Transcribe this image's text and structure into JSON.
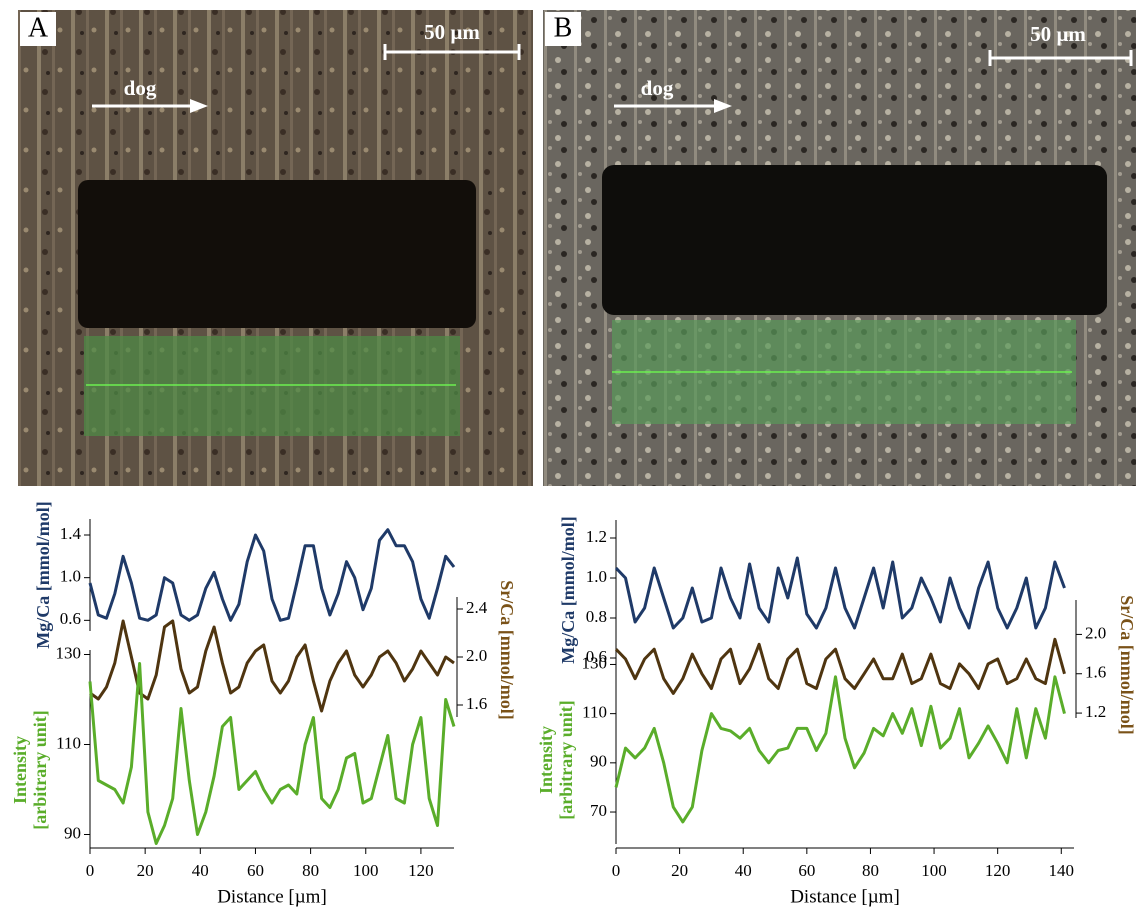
{
  "images": [
    {
      "label": "A",
      "scale_bar": "50 µm",
      "arrow_label": "dog"
    },
    {
      "label": "B",
      "scale_bar": "50 µm",
      "arrow_label": "dog"
    }
  ],
  "chart_data": [
    {
      "type": "line",
      "xlabel": "Distance [µm]",
      "xlim": [
        0,
        132
      ],
      "xticks": [
        0,
        20,
        40,
        60,
        80,
        100,
        120
      ],
      "ylabel": "Mg/Ca [mmol/mol]",
      "ylim": [
        0.5,
        1.55
      ],
      "yticks": [
        0.6,
        {
          "value": 1,
          "label": "1.0"
        },
        1.4
      ],
      "y2label": "Sr/Ca [mmol/mol]",
      "y2lim": [
        1.5,
        2.5
      ],
      "y2ticks": [
        1.6,
        {
          "value": 2,
          "label": "2.0"
        },
        2.4
      ],
      "y3label": [
        "Intensity",
        "[arbitrary unit]"
      ],
      "y3lim": [
        87,
        131
      ],
      "y3ticks": [
        90,
        110,
        130
      ],
      "x": [
        0,
        3,
        6,
        9,
        12,
        15,
        18,
        21,
        24,
        27,
        30,
        33,
        36,
        39,
        42,
        45,
        48,
        51,
        54,
        57,
        60,
        63,
        66,
        69,
        72,
        75,
        78,
        81,
        84,
        87,
        90,
        93,
        96,
        99,
        102,
        105,
        108,
        111,
        114,
        117,
        120,
        123,
        126,
        129,
        132
      ],
      "series": [
        {
          "color": "#1f3a68",
          "axis": "y",
          "values": [
            0.95,
            0.65,
            0.62,
            0.85,
            1.2,
            0.95,
            0.62,
            0.6,
            0.65,
            1.0,
            0.95,
            0.65,
            0.6,
            0.65,
            0.9,
            1.05,
            0.8,
            0.6,
            0.75,
            1.15,
            1.4,
            1.25,
            0.8,
            0.6,
            0.62,
            0.95,
            1.3,
            1.3,
            0.9,
            0.65,
            0.85,
            1.15,
            1.0,
            0.7,
            0.9,
            1.35,
            1.45,
            1.3,
            1.3,
            1.15,
            0.8,
            0.62,
            0.9,
            1.2,
            1.1
          ]
        },
        {
          "color": "#4f3510",
          "axis": "y2",
          "values": [
            1.7,
            1.65,
            1.75,
            1.95,
            2.3,
            2.0,
            1.7,
            1.65,
            1.85,
            2.25,
            2.3,
            1.9,
            1.7,
            1.75,
            2.05,
            2.25,
            1.95,
            1.7,
            1.75,
            1.95,
            2.05,
            2.1,
            1.8,
            1.7,
            1.8,
            2.0,
            2.1,
            1.8,
            1.55,
            1.8,
            1.95,
            2.05,
            1.85,
            1.75,
            1.85,
            2.0,
            2.05,
            1.95,
            1.8,
            1.9,
            2.05,
            1.95,
            1.85,
            2.0,
            1.95
          ]
        },
        {
          "color": "#5aad2a",
          "axis": "y3",
          "values": [
            124,
            102,
            101,
            100,
            97,
            105,
            128,
            95,
            88,
            92,
            98,
            118,
            102,
            90,
            95,
            103,
            114,
            116,
            100,
            102,
            104,
            100,
            97,
            100,
            101,
            99,
            110,
            116,
            98,
            96,
            100,
            107,
            108,
            97,
            98,
            105,
            112,
            98,
            97,
            110,
            116,
            98,
            92,
            120,
            114
          ]
        }
      ]
    },
    {
      "type": "line",
      "xlabel": "Distance [µm]",
      "xlim": [
        0,
        144
      ],
      "xticks": [
        0,
        20,
        40,
        60,
        80,
        100,
        120,
        140
      ],
      "ylabel": "Mg/Ca [mmol/mol]",
      "ylim": [
        0.55,
        1.29
      ],
      "yticks": [
        0.6,
        0.8,
        {
          "value": 1,
          "label": "1.0"
        },
        1.2
      ],
      "y2label": "Sr/Ca [mmol/mol]",
      "y2lim": [
        1.15,
        2.35
      ],
      "y2ticks": [
        1.2,
        1.6,
        {
          "value": 2,
          "label": "2.0"
        }
      ],
      "y3label": [
        "Intensity",
        "[arbitrary unit]"
      ],
      "y3lim": [
        57,
        131
      ],
      "y3ticks": [
        70,
        90,
        110,
        130
      ],
      "x": [
        0,
        3,
        6,
        9,
        12,
        15,
        18,
        21,
        24,
        27,
        30,
        33,
        36,
        39,
        42,
        45,
        48,
        51,
        54,
        57,
        60,
        63,
        66,
        69,
        72,
        75,
        78,
        81,
        84,
        87,
        90,
        93,
        96,
        99,
        102,
        105,
        108,
        111,
        114,
        117,
        120,
        123,
        126,
        129,
        132,
        135,
        138,
        141
      ],
      "series": [
        {
          "color": "#1f3a68",
          "axis": "y",
          "values": [
            1.05,
            1.0,
            0.78,
            0.85,
            1.05,
            0.9,
            0.75,
            0.8,
            0.95,
            0.78,
            0.8,
            1.05,
            0.9,
            0.8,
            1.07,
            0.85,
            0.78,
            1.05,
            0.9,
            1.1,
            0.82,
            0.75,
            0.85,
            1.05,
            0.85,
            0.75,
            0.9,
            1.05,
            0.85,
            1.08,
            0.8,
            0.85,
            1.0,
            0.9,
            0.78,
            1.0,
            0.85,
            0.75,
            0.95,
            1.08,
            0.85,
            0.75,
            0.85,
            1.0,
            0.75,
            0.85,
            1.08,
            0.95
          ]
        },
        {
          "color": "#4f3510",
          "axis": "y2",
          "values": [
            1.85,
            1.75,
            1.55,
            1.75,
            1.85,
            1.55,
            1.4,
            1.55,
            1.8,
            1.6,
            1.45,
            1.75,
            1.85,
            1.5,
            1.65,
            1.9,
            1.55,
            1.45,
            1.75,
            1.85,
            1.5,
            1.45,
            1.75,
            1.85,
            1.55,
            1.45,
            1.6,
            1.75,
            1.55,
            1.55,
            1.8,
            1.5,
            1.55,
            1.8,
            1.5,
            1.45,
            1.7,
            1.6,
            1.45,
            1.7,
            1.75,
            1.5,
            1.55,
            1.75,
            1.55,
            1.5,
            1.95,
            1.6
          ]
        },
        {
          "color": "#5aad2a",
          "axis": "y3",
          "values": [
            80,
            96,
            92,
            96,
            104,
            90,
            72,
            66,
            72,
            95,
            110,
            104,
            103,
            100,
            104,
            95,
            90,
            95,
            96,
            104,
            104,
            95,
            102,
            125,
            100,
            88,
            94,
            104,
            101,
            110,
            102,
            112,
            97,
            113,
            96,
            100,
            112,
            92,
            98,
            105,
            98,
            90,
            112,
            92,
            112,
            100,
            125,
            110
          ]
        }
      ]
    }
  ]
}
